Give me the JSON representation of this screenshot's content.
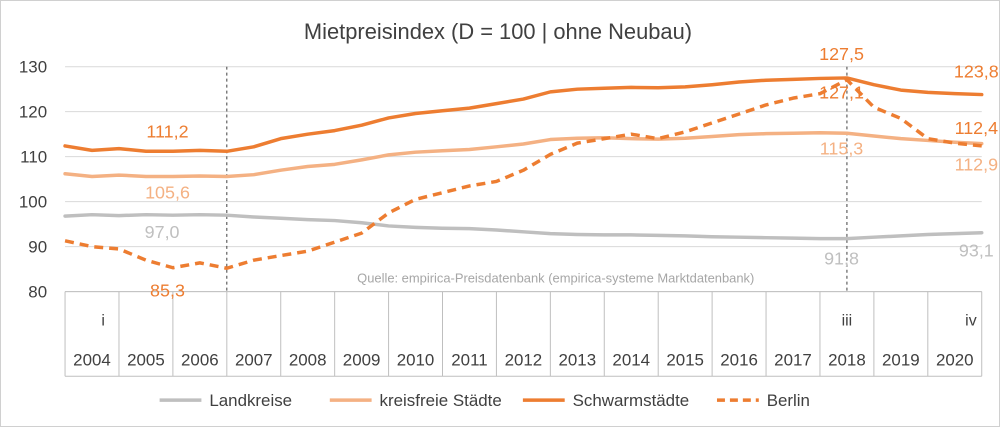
{
  "chart_data": {
    "type": "line",
    "title": "Mietpreisindex (D = 100 | ohne Neubau)",
    "ylim": [
      80,
      130
    ],
    "yticks": [
      "80",
      "90",
      "100",
      "110",
      "120",
      "130"
    ],
    "xlim": [
      2004,
      2021
    ],
    "year_labels": [
      "2004",
      "2005",
      "2006",
      "2007",
      "2008",
      "2009",
      "2010",
      "2011",
      "2012",
      "2013",
      "2014",
      "2015",
      "2016",
      "2017",
      "2018",
      "2019",
      "2020"
    ],
    "markers": [
      {
        "label": "i",
        "x": 2007
      },
      {
        "label": "iii",
        "x": 2018.5
      },
      {
        "label": "iv",
        "x": 2020.8
      }
    ],
    "source": "Quelle: empirica-Preisdatenbank (empirica-systeme Marktdatenbank)",
    "grid": true,
    "legend_position": "bottom",
    "colors": {
      "Landkreise": "#bfbfbf",
      "kreisfreie Städte": "#f4b183",
      "Schwarmstädte": "#ed7d31",
      "Berlin": "#ed7d31"
    },
    "series": [
      {
        "name": "Landkreise",
        "style": "solid",
        "x": [
          2004,
          2004.5,
          2005,
          2005.5,
          2006,
          2006.5,
          2007,
          2007.5,
          2008,
          2008.5,
          2009,
          2009.5,
          2010,
          2010.5,
          2011,
          2011.5,
          2012,
          2012.5,
          2013,
          2013.5,
          2014,
          2014.5,
          2015,
          2015.5,
          2016,
          2016.5,
          2017,
          2017.5,
          2018,
          2018.5,
          2019,
          2019.5,
          2020,
          2020.5,
          2021
        ],
        "values": [
          96.8,
          97.1,
          96.9,
          97.1,
          97.0,
          97.1,
          97.0,
          96.6,
          96.3,
          96.0,
          95.8,
          95.3,
          94.6,
          94.3,
          94.1,
          94.0,
          93.7,
          93.3,
          92.9,
          92.7,
          92.6,
          92.6,
          92.5,
          92.4,
          92.2,
          92.1,
          92.0,
          91.9,
          91.8,
          91.8,
          92.1,
          92.4,
          92.7,
          92.9,
          93.1
        ]
      },
      {
        "name": "kreisfreie Städte",
        "style": "solid",
        "x": [
          2004,
          2004.5,
          2005,
          2005.5,
          2006,
          2006.5,
          2007,
          2007.5,
          2008,
          2008.5,
          2009,
          2009.5,
          2010,
          2010.5,
          2011,
          2011.5,
          2012,
          2012.5,
          2013,
          2013.5,
          2014,
          2014.5,
          2015,
          2015.5,
          2016,
          2016.5,
          2017,
          2017.5,
          2018,
          2018.5,
          2019,
          2019.5,
          2020,
          2020.5,
          2021
        ],
        "values": [
          106.2,
          105.6,
          105.9,
          105.6,
          105.6,
          105.7,
          105.6,
          106.0,
          107.0,
          107.8,
          108.3,
          109.3,
          110.4,
          111.0,
          111.3,
          111.6,
          112.2,
          112.8,
          113.8,
          114.1,
          114.2,
          114.0,
          113.9,
          114.1,
          114.5,
          114.9,
          115.1,
          115.2,
          115.3,
          115.2,
          114.6,
          114.0,
          113.6,
          113.2,
          112.9
        ]
      },
      {
        "name": "Schwarmstädte",
        "style": "solid",
        "x": [
          2004,
          2004.5,
          2005,
          2005.5,
          2006,
          2006.5,
          2007,
          2007.5,
          2008,
          2008.5,
          2009,
          2009.5,
          2010,
          2010.5,
          2011,
          2011.5,
          2012,
          2012.5,
          2013,
          2013.5,
          2014,
          2014.5,
          2015,
          2015.5,
          2016,
          2016.5,
          2017,
          2017.5,
          2018,
          2018.5,
          2019,
          2019.5,
          2020,
          2020.5,
          2021
        ],
        "values": [
          112.4,
          111.4,
          111.8,
          111.2,
          111.2,
          111.4,
          111.2,
          112.2,
          114.0,
          115.0,
          115.8,
          117.0,
          118.6,
          119.6,
          120.2,
          120.8,
          121.8,
          122.8,
          124.4,
          125.0,
          125.2,
          125.4,
          125.3,
          125.5,
          126.0,
          126.6,
          127.0,
          127.2,
          127.4,
          127.5,
          126.0,
          124.8,
          124.3,
          124.0,
          123.8
        ]
      },
      {
        "name": "Berlin",
        "style": "dashed",
        "x": [
          2004,
          2004.5,
          2005,
          2005.5,
          2006,
          2006.5,
          2007,
          2007.5,
          2008,
          2008.5,
          2009,
          2009.5,
          2010,
          2010.5,
          2011,
          2011.5,
          2012,
          2012.5,
          2013,
          2013.5,
          2014,
          2014.5,
          2015,
          2015.5,
          2016,
          2016.5,
          2017,
          2017.5,
          2018,
          2018.5,
          2019,
          2019.5,
          2020,
          2020.5,
          2021
        ],
        "values": [
          91.3,
          90.0,
          89.5,
          87.0,
          85.3,
          86.4,
          85.2,
          87.0,
          88.0,
          89.0,
          91.0,
          93.0,
          97.5,
          100.5,
          102.0,
          103.5,
          104.5,
          107.0,
          110.5,
          113.0,
          114.0,
          115.0,
          114.0,
          115.5,
          117.5,
          119.5,
          121.5,
          123.0,
          124.0,
          127.1,
          121.0,
          118.5,
          114.0,
          113.0,
          112.4
        ]
      }
    ],
    "data_labels": [
      {
        "text": "111,2",
        "x": 2005.9,
        "y": 111.2,
        "color": "#ed7d31"
      },
      {
        "text": "105,6",
        "x": 2005.9,
        "y": 105.6,
        "color": "#f4b183"
      },
      {
        "text": "97,0",
        "x": 2005.8,
        "y": 97.0,
        "color": "#bfbfbf"
      },
      {
        "text": "85,3",
        "x": 2005.9,
        "y": 85.3,
        "color": "#ed7d31"
      },
      {
        "text": "127,5",
        "x": 2018.4,
        "y": 127.5,
        "color": "#ed7d31"
      },
      {
        "text": "127,1",
        "x": 2018.4,
        "y": 127.1,
        "color": "#ed7d31"
      },
      {
        "text": "115,3",
        "x": 2018.4,
        "y": 115.3,
        "color": "#f4b183"
      },
      {
        "text": "91,8",
        "x": 2018.4,
        "y": 91.8,
        "color": "#bfbfbf"
      },
      {
        "text": "123,8",
        "x": 2020.9,
        "y": 123.8,
        "color": "#ed7d31"
      },
      {
        "text": "112,4",
        "x": 2020.9,
        "y": 112.4,
        "color": "#ed7d31"
      },
      {
        "text": "112,9",
        "x": 2020.9,
        "y": 112.9,
        "color": "#f4b183"
      },
      {
        "text": "93,1",
        "x": 2020.9,
        "y": 93.1,
        "color": "#bfbfbf"
      }
    ]
  }
}
